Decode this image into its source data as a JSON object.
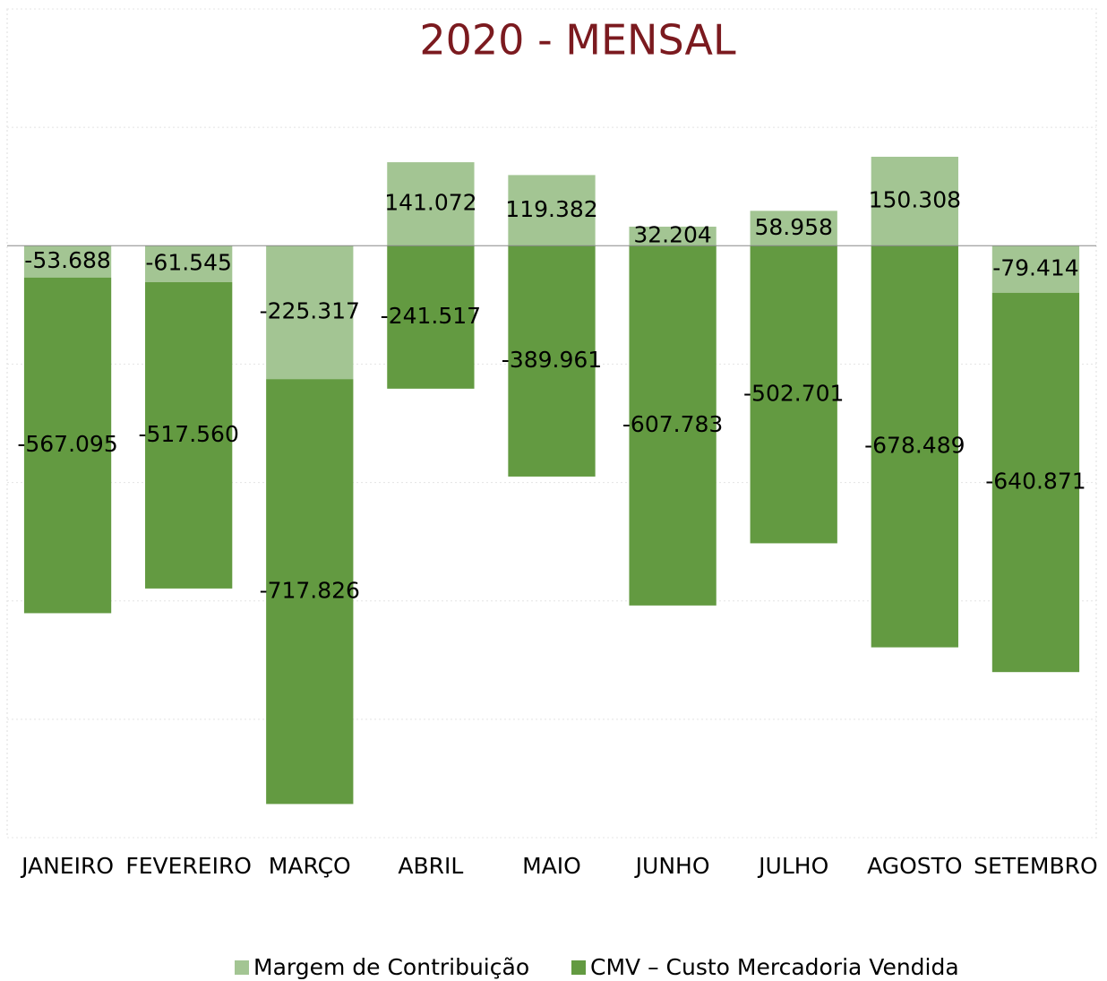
{
  "chart_data": {
    "type": "bar",
    "stacked": true,
    "title": "2020 - MENSAL",
    "categories": [
      "JANEIRO",
      "FEVEREIRO",
      "MARÇO",
      "ABRIL",
      "MAIO",
      "JUNHO",
      "JULHO",
      "AGOSTO",
      "SETEMBRO"
    ],
    "series": [
      {
        "name": "Margem de Contribuição",
        "color": "#a3c593",
        "values": [
          -53688,
          -61545,
          -225317,
          141072,
          119382,
          32204,
          58958,
          150308,
          -79414
        ],
        "value_labels": [
          "-53.688",
          "-61.545",
          "-225.317",
          "141.072",
          "119.382",
          "32.204",
          "58.958",
          "150.308",
          "-79.414"
        ]
      },
      {
        "name": "CMV – Custo Mercadoria Vendida",
        "color": "#639a41",
        "values": [
          -567095,
          -517560,
          -717826,
          -241517,
          -389961,
          -607783,
          -502701,
          -678489,
          -640871
        ],
        "value_labels": [
          "-567.095",
          "-517.560",
          "-717.826",
          "-241.517",
          "-389.961",
          "-607.783",
          "-502.701",
          "-678.489",
          "-640.871"
        ]
      }
    ],
    "ylim": [
      -1000000,
      400000
    ],
    "yticks": [
      -1000000,
      -800000,
      -600000,
      -400000,
      -200000,
      0,
      200000,
      400000
    ],
    "grid": true,
    "legend": "bottom"
  }
}
